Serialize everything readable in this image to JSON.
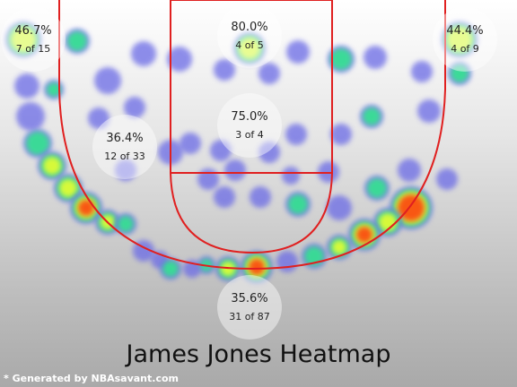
{
  "chart_data": {
    "type": "heatmap",
    "title": "James Jones Heatmap",
    "credit": "* Generated by NBAsavant.com",
    "zones": [
      {
        "name": "left-corner-three",
        "pct": "46.7%",
        "made_of_attempts": "7 of 15"
      },
      {
        "name": "top-paint",
        "pct": "80.0%",
        "made_of_attempts": "4 of 5"
      },
      {
        "name": "right-corner-three",
        "pct": "44.4%",
        "made_of_attempts": "4 of 9"
      },
      {
        "name": "left-midrange",
        "pct": "36.4%",
        "made_of_attempts": "12 of 33"
      },
      {
        "name": "paint",
        "pct": "75.0%",
        "made_of_attempts": "3 of 4"
      },
      {
        "name": "above-break-three",
        "pct": "35.6%",
        "made_of_attempts": "31 of 87"
      }
    ],
    "colors": {
      "court_line": "#e02020",
      "cold": "#6a6ae6",
      "warm": "#ff3b10",
      "mid": "#f2ff2a",
      "edge": "#2de88a"
    }
  }
}
